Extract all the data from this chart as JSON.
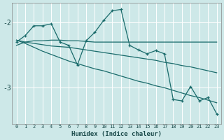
{
  "xlabel": "Humidex (Indice chaleur)",
  "bg_color": "#cde8e8",
  "line_color": "#1a6b6b",
  "grid_color": "#ffffff",
  "xlim": [
    -0.5,
    23.5
  ],
  "ylim": [
    -3.55,
    -1.7
  ],
  "yticks": [
    -3,
    -2
  ],
  "xticks": [
    0,
    1,
    2,
    3,
    4,
    5,
    6,
    7,
    8,
    9,
    10,
    11,
    12,
    13,
    14,
    15,
    16,
    17,
    18,
    19,
    20,
    21,
    22,
    23
  ],
  "line1_x": [
    0,
    1,
    2,
    3,
    4,
    5,
    6,
    7,
    8,
    9,
    10,
    11,
    12,
    13,
    14,
    15,
    16,
    17,
    18,
    19,
    20,
    21,
    22,
    23
  ],
  "line1_y": [
    -2.3,
    -2.2,
    -2.05,
    -2.05,
    -2.02,
    -2.3,
    -2.35,
    -2.65,
    -2.28,
    -2.15,
    -1.97,
    -1.82,
    -1.8,
    -2.35,
    -2.42,
    -2.48,
    -2.43,
    -2.48,
    -3.18,
    -3.2,
    -2.98,
    -3.2,
    -3.15,
    -3.4
  ],
  "line2_x": [
    0,
    1,
    2,
    3,
    4,
    5,
    6,
    7,
    8,
    9,
    10,
    11,
    12,
    13,
    14,
    15,
    16,
    17,
    18,
    19,
    20,
    21,
    22,
    23
  ],
  "line2_y": [
    -2.35,
    -2.3,
    -2.28,
    -2.28,
    -2.27,
    -2.27,
    -2.28,
    -2.28,
    -2.29,
    -2.3,
    -2.3,
    -2.3,
    -2.3,
    -2.3,
    -2.3,
    -2.3,
    -2.3,
    -2.3,
    -2.3,
    -2.3,
    -2.3,
    -2.3,
    -2.3,
    -2.3
  ],
  "line3_x": [
    0,
    1,
    2,
    3,
    4,
    5,
    6,
    7,
    8,
    9,
    10,
    11,
    12,
    13,
    14,
    15,
    16,
    17,
    18,
    19,
    20,
    21,
    22,
    23
  ],
  "line3_y": [
    -2.27,
    -2.3,
    -2.32,
    -2.34,
    -2.36,
    -2.37,
    -2.38,
    -2.4,
    -2.42,
    -2.44,
    -2.46,
    -2.48,
    -2.5,
    -2.52,
    -2.54,
    -2.56,
    -2.58,
    -2.61,
    -2.63,
    -2.66,
    -2.68,
    -2.71,
    -2.74,
    -2.77
  ],
  "line4_x": [
    0,
    1,
    2,
    3,
    4,
    5,
    6,
    7,
    8,
    9,
    10,
    11,
    12,
    13,
    14,
    15,
    16,
    17,
    18,
    19,
    20,
    21,
    22,
    23
  ],
  "line4_y": [
    -2.27,
    -2.32,
    -2.38,
    -2.44,
    -2.49,
    -2.54,
    -2.59,
    -2.63,
    -2.67,
    -2.71,
    -2.74,
    -2.78,
    -2.82,
    -2.86,
    -2.9,
    -2.93,
    -2.97,
    -3.0,
    -3.04,
    -3.08,
    -3.12,
    -3.15,
    -3.19,
    -3.23
  ]
}
